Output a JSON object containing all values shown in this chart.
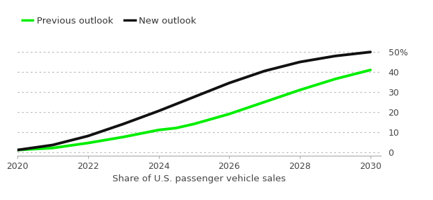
{
  "xlabel": "Share of U.S. passenger vehicle sales",
  "legend": [
    "Previous outlook",
    "New outlook"
  ],
  "prev_x": [
    2020,
    2021,
    2022,
    2023,
    2024,
    2024.5,
    2025,
    2026,
    2027,
    2028,
    2029,
    2030
  ],
  "prev_y": [
    1.0,
    2.0,
    4.5,
    7.5,
    11.0,
    12.0,
    14.0,
    19.0,
    25.0,
    31.0,
    36.5,
    41.0
  ],
  "new_x": [
    2020,
    2021,
    2022,
    2023,
    2024,
    2025,
    2026,
    2027,
    2028,
    2029,
    2030
  ],
  "new_y": [
    1.0,
    3.5,
    8.0,
    14.0,
    20.5,
    27.5,
    34.5,
    40.5,
    45.0,
    48.0,
    50.0
  ],
  "prev_color": "#00ee00",
  "new_color": "#111111",
  "bg_color": "#ffffff",
  "grid_color": "#bbbbbb",
  "ylim": [
    -2,
    54
  ],
  "xlim": [
    2020,
    2030.3
  ],
  "yticks": [
    0,
    10,
    20,
    30,
    40,
    50
  ],
  "ytick_labels": [
    "0",
    "10",
    "20",
    "30",
    "40",
    "50%"
  ],
  "xticks": [
    2020,
    2022,
    2024,
    2026,
    2028,
    2030
  ],
  "line_width": 2.8,
  "legend_fontsize": 9.5,
  "tick_fontsize": 9,
  "xlabel_fontsize": 9.5
}
